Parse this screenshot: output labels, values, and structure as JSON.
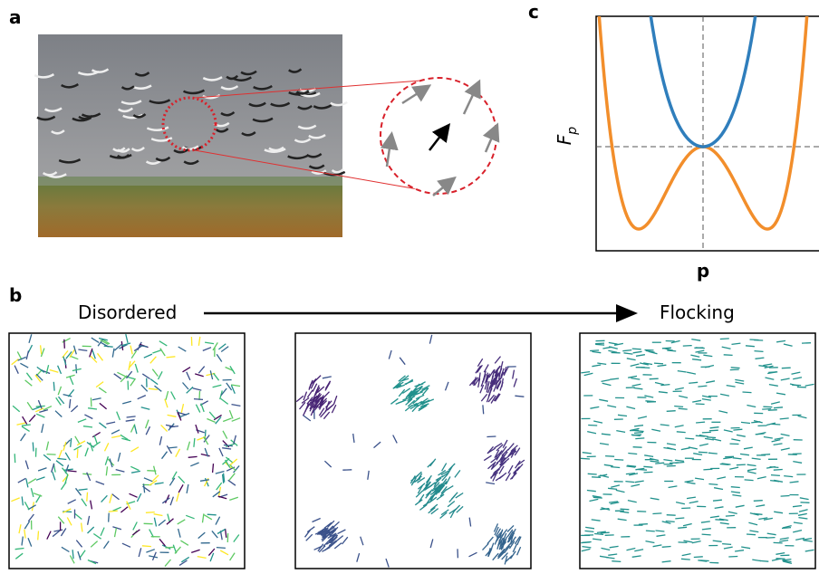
{
  "panels": [
    {
      "label": "a"
    },
    {
      "label": "b"
    },
    {
      "label": "c"
    }
  ],
  "panel_b": {
    "start_label": "Disordered",
    "end_label": "Flocking"
  },
  "panel_c": {
    "y_axis_label": "F",
    "y_axis_subscript": "p",
    "x_axis_label": "p"
  }
}
